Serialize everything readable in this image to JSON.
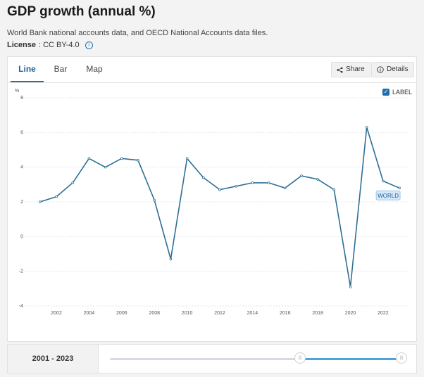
{
  "header": {
    "title": "GDP growth (annual %)",
    "subtitle": "World Bank national accounts data, and OECD National Accounts data files.",
    "license_label": "License",
    "license_value": ": CC BY-4.0"
  },
  "tabs": [
    {
      "label": "Line",
      "active": true
    },
    {
      "label": "Bar",
      "active": false
    },
    {
      "label": "Map",
      "active": false
    }
  ],
  "toolbar": {
    "share_label": "Share",
    "details_label": "Details"
  },
  "label_toggle": {
    "label": "LABEL",
    "checked": true
  },
  "range": {
    "label": "2001 - 2023",
    "start": 2001,
    "end": 2023
  },
  "colors": {
    "line": "#2e6f96",
    "accent": "#1f6fb0",
    "slider_fill": "#4ba3e0"
  },
  "icons": {
    "share": "share-icon",
    "details": "info-icon",
    "license": "info-icon"
  },
  "chart_data": {
    "type": "line",
    "title": "",
    "xlabel": "",
    "ylabel": "%",
    "ylim": [
      -4,
      8
    ],
    "yticks": [
      -4,
      -2,
      0,
      2,
      4,
      6,
      8
    ],
    "xticks": [
      2002,
      2004,
      2006,
      2008,
      2010,
      2012,
      2014,
      2016,
      2018,
      2020,
      2022
    ],
    "grid": true,
    "series": [
      {
        "name": "WORLD",
        "x": [
          2001,
          2002,
          2003,
          2004,
          2005,
          2006,
          2007,
          2008,
          2009,
          2010,
          2011,
          2012,
          2013,
          2014,
          2015,
          2016,
          2017,
          2018,
          2019,
          2020,
          2021,
          2022,
          2023
        ],
        "values": [
          2.0,
          2.3,
          3.1,
          4.5,
          4.0,
          4.5,
          4.4,
          2.1,
          -1.3,
          4.5,
          3.4,
          2.7,
          2.9,
          3.1,
          3.1,
          2.8,
          3.5,
          3.3,
          2.7,
          -2.9,
          6.3,
          3.2,
          2.8
        ]
      }
    ]
  }
}
